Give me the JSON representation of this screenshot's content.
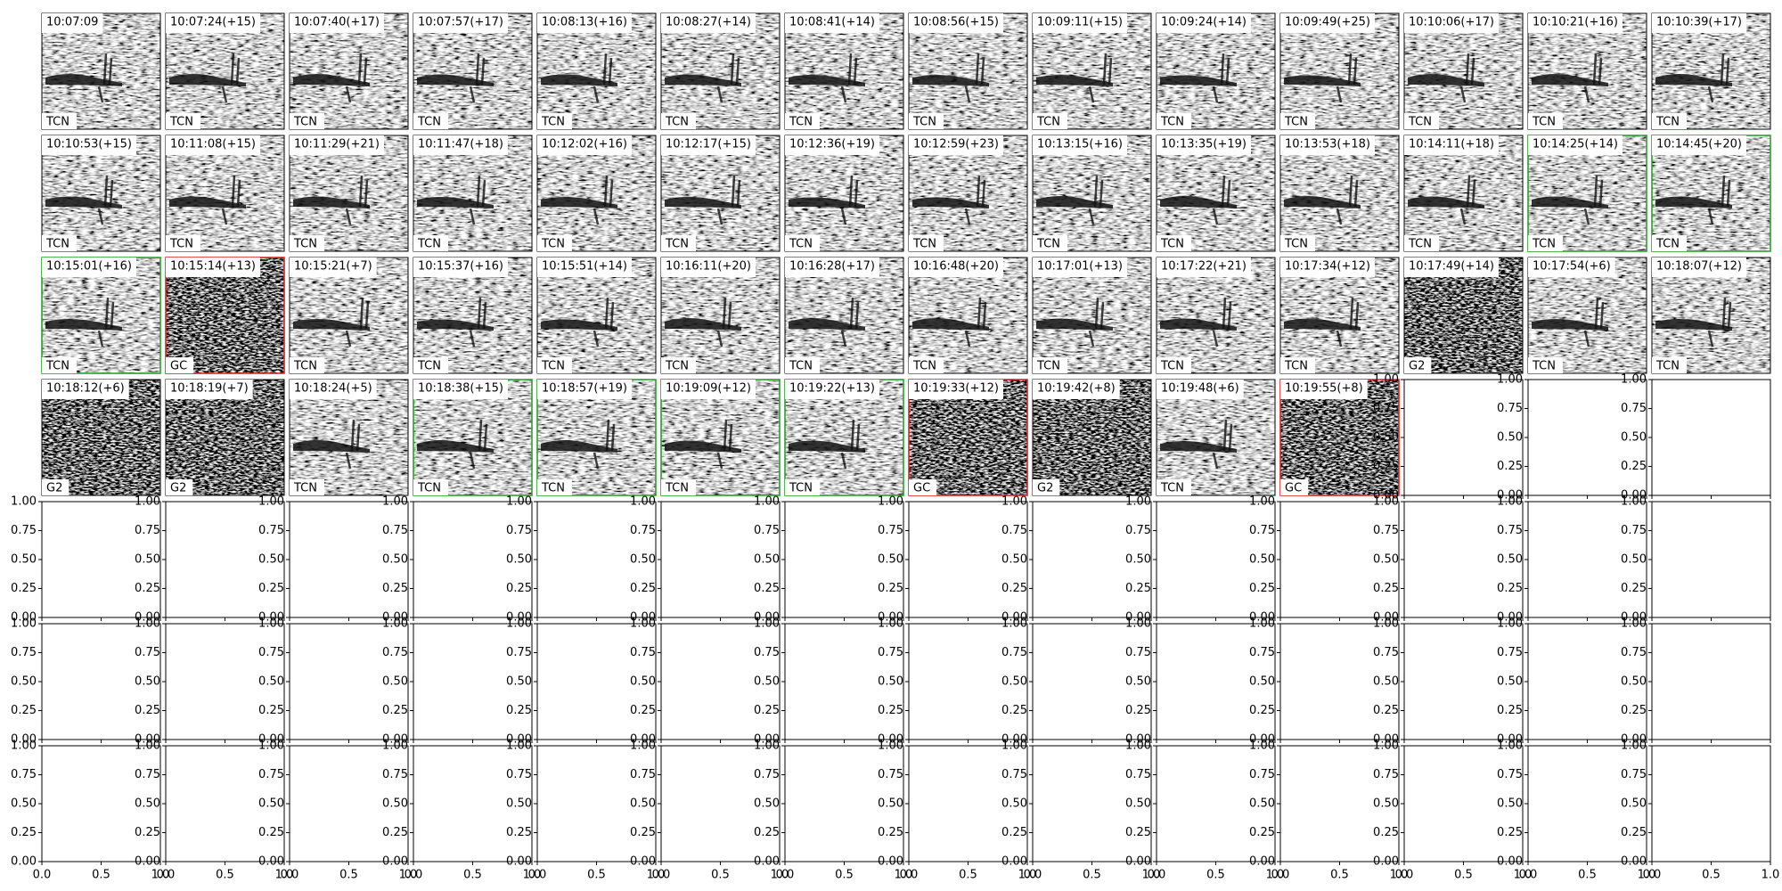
{
  "panels": [
    {
      "time": "10:07:09",
      "label": "TCN"
    },
    {
      "time": "10:07:24(+15)",
      "label": "TCN"
    },
    {
      "time": "10:07:40(+17)",
      "label": "TCN"
    },
    {
      "time": "10:07:57(+17)",
      "label": "TCN"
    },
    {
      "time": "10:08:13(+16)",
      "label": "TCN"
    },
    {
      "time": "10:08:27(+14)",
      "label": "TCN"
    },
    {
      "time": "10:08:41(+14)",
      "label": "TCN"
    },
    {
      "time": "10:08:56(+15)",
      "label": "TCN"
    },
    {
      "time": "10:09:11(+15)",
      "label": "TCN"
    },
    {
      "time": "10:09:24(+14)",
      "label": "TCN"
    },
    {
      "time": "10:09:49(+25)",
      "label": "TCN"
    },
    {
      "time": "10:10:06(+17)",
      "label": "TCN"
    },
    {
      "time": "10:10:21(+16)",
      "label": "TCN"
    },
    {
      "time": "10:10:39(+17)",
      "label": "TCN"
    },
    {
      "time": "10:10:53(+15)",
      "label": "TCN"
    },
    {
      "time": "10:11:08(+15)",
      "label": "TCN"
    },
    {
      "time": "10:11:29(+21)",
      "label": "TCN"
    },
    {
      "time": "10:11:47(+18)",
      "label": "TCN"
    },
    {
      "time": "10:12:02(+16)",
      "label": "TCN"
    },
    {
      "time": "10:12:17(+15)",
      "label": "TCN"
    },
    {
      "time": "10:12:36(+19)",
      "label": "TCN"
    },
    {
      "time": "10:12:59(+23)",
      "label": "TCN"
    },
    {
      "time": "10:13:15(+16)",
      "label": "TCN"
    },
    {
      "time": "10:13:35(+19)",
      "label": "TCN"
    },
    {
      "time": "10:13:53(+18)",
      "label": "TCN"
    },
    {
      "time": "10:14:11(+18)",
      "label": "TCN"
    },
    {
      "time": "10:14:25(+14)",
      "label": "TCN",
      "border_color": "#2ca02c"
    },
    {
      "time": "10:14:45(+20)",
      "label": "TCN",
      "border_color": "#2ca02c"
    },
    {
      "time": "10:15:01(+16)",
      "label": "TCN",
      "border_color": "#2ca02c"
    },
    {
      "time": "10:15:14(+13)",
      "label": "GC",
      "border_color": "#d62728"
    },
    {
      "time": "10:15:21(+7)",
      "label": "TCN"
    },
    {
      "time": "10:15:37(+16)",
      "label": "TCN"
    },
    {
      "time": "10:15:51(+14)",
      "label": "TCN"
    },
    {
      "time": "10:16:11(+20)",
      "label": "TCN"
    },
    {
      "time": "10:16:28(+17)",
      "label": "TCN"
    },
    {
      "time": "10:16:48(+20)",
      "label": "TCN"
    },
    {
      "time": "10:17:01(+13)",
      "label": "TCN"
    },
    {
      "time": "10:17:22(+21)",
      "label": "TCN"
    },
    {
      "time": "10:17:34(+12)",
      "label": "TCN"
    },
    {
      "time": "10:17:49(+14)",
      "label": "G2"
    },
    {
      "time": "10:17:54(+6)",
      "label": "TCN"
    },
    {
      "time": "10:18:07(+12)",
      "label": "TCN"
    },
    {
      "time": "10:18:12(+6)",
      "label": "G2"
    },
    {
      "time": "10:18:19(+7)",
      "label": "G2"
    },
    {
      "time": "10:18:24(+5)",
      "label": "TCN"
    },
    {
      "time": "10:18:38(+15)",
      "label": "TCN",
      "border_color": "#2ca02c"
    },
    {
      "time": "10:18:57(+19)",
      "label": "TCN",
      "border_color": "#2ca02c"
    },
    {
      "time": "10:19:09(+12)",
      "label": "TCN",
      "border_color": "#2ca02c"
    },
    {
      "time": "10:19:22(+13)",
      "label": "TCN",
      "border_color": "#2ca02c"
    },
    {
      "time": "10:19:33(+12)",
      "label": "GC",
      "border_color": "#d62728"
    },
    {
      "time": "10:19:42(+8)",
      "label": "G2"
    },
    {
      "time": "10:19:48(+6)",
      "label": "TCN"
    },
    {
      "time": "10:19:55(+8)",
      "label": "GC",
      "border_color": "#d62728"
    }
  ],
  "grid": {
    "columns": 14,
    "rows": 7
  },
  "empty_axes": {
    "ylim": [
      0,
      1
    ],
    "xlim": [
      0,
      1
    ],
    "yticks": [
      {
        "value": 0,
        "label": "0.00"
      },
      {
        "value": 0.25,
        "label": "0.25"
      },
      {
        "value": 0.5,
        "label": "0.50"
      },
      {
        "value": 0.75,
        "label": "0.75"
      },
      {
        "value": 1,
        "label": "1.00"
      }
    ],
    "xticks": [
      {
        "value": 0,
        "label": "0.0"
      },
      {
        "value": 0.5,
        "label": "0.5"
      },
      {
        "value": 1,
        "label": "1.0"
      }
    ]
  }
}
